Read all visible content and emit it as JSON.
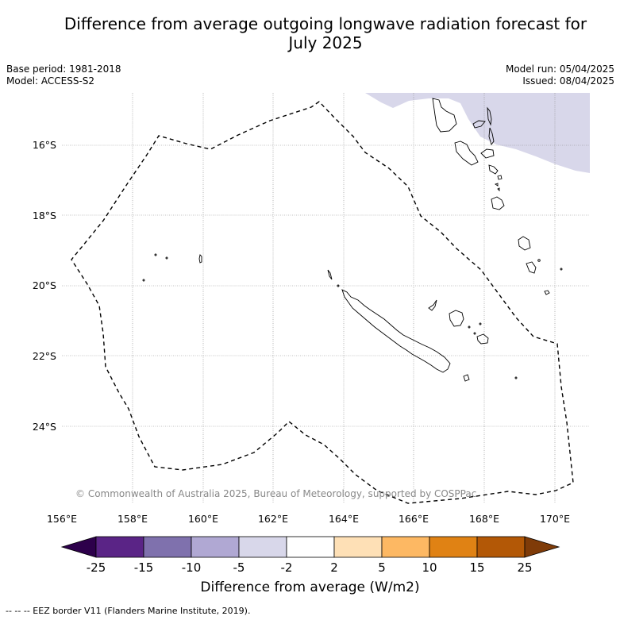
{
  "title": "Difference from average outgoing longwave radiation forecast for July 2025",
  "title_lines": [
    "Difference from average outgoing longwave radiation forecast for",
    "July 2025"
  ],
  "base_period": "Base period: 1981-2018",
  "model": "Model: ACCESS-S2",
  "model_run": "Model run: 05/04/2025",
  "issued": "Issued: 08/04/2025",
  "copyright": "© Commonwealth of Australia 2025, Bureau of Meteorology, supported by COSPPac",
  "footnote": "-- -- -- EEZ border V11 (Flanders Marine Institute, 2019).",
  "colorbar": {
    "label": "Difference from average (W/m2)",
    "ticks": [
      "-25",
      "-15",
      "-10",
      "-5",
      "-2",
      "2",
      "5",
      "10",
      "15",
      "25"
    ],
    "colors": [
      "#5a2486",
      "#7f71ad",
      "#b0a8d3",
      "#d8d7ea",
      "#ffffff",
      "#fee0b6",
      "#fdb863",
      "#e08214",
      "#b35806"
    ],
    "under_color": "#2d004b",
    "over_color": "#7f3b08"
  },
  "map": {
    "lon_ticks": [
      "156°E",
      "158°E",
      "160°E",
      "162°E",
      "164°E",
      "166°E",
      "168°E",
      "170°E"
    ],
    "lat_ticks": [
      "16°S",
      "18°S",
      "20°S",
      "22°S",
      "24°S"
    ],
    "lon_range": [
      156,
      171
    ],
    "lat_range": [
      -26.2,
      -14.5
    ],
    "anomaly_region_color": "#d8d7ea",
    "anomaly_region_category": "-5 to -2",
    "grid": true
  }
}
